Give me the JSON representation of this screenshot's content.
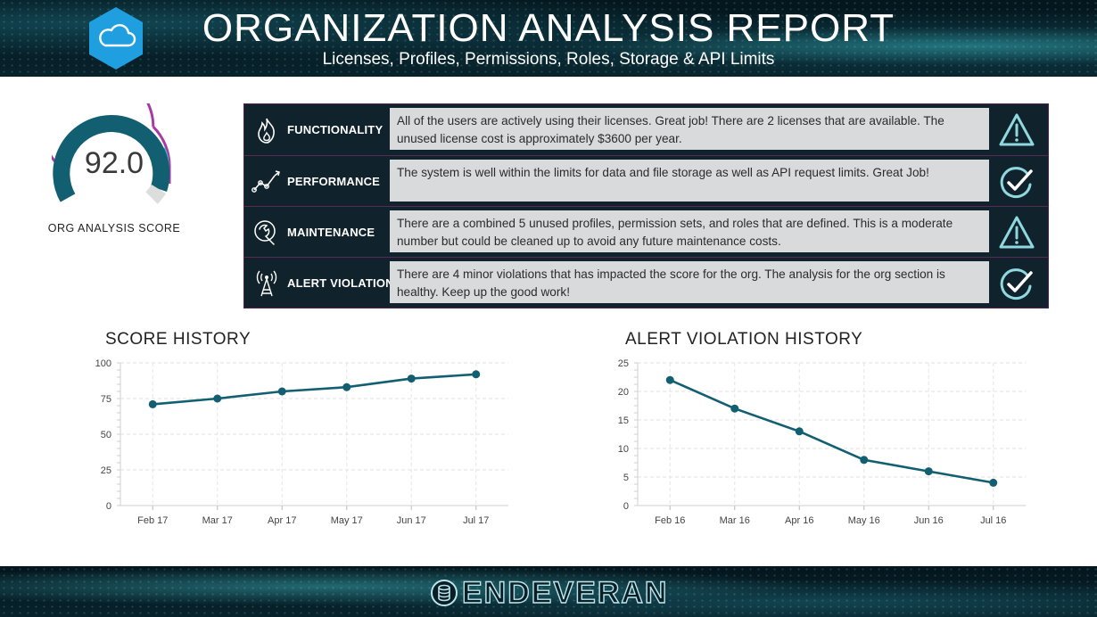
{
  "header": {
    "title": "ORGANIZATION ANALYSIS REPORT",
    "subtitle": "Licenses, Profiles, Permissions, Roles, Storage & API Limits",
    "logo_icon": "cloud-icon"
  },
  "score": {
    "value": "92.0",
    "label": "ORG ANALYSIS SCORE",
    "progress_fraction": 0.92,
    "colors": {
      "ring": "#135f72",
      "outer": "#a83aa6",
      "accent": "#41b6bf"
    }
  },
  "categories": [
    {
      "label": "FUNCTIONALITY",
      "icon": "flame-icon",
      "description": "All of the users are actively using their licenses. Great job! There are 2 licenses that are available. The unused license cost is approximately $3600 per year.",
      "status": "warning-icon"
    },
    {
      "label": "PERFORMANCE",
      "icon": "trend-graph-icon",
      "description": "The system is well within the limits for data and file storage as well as API request limits. Great Job!",
      "status": "check-icon"
    },
    {
      "label": "MAINTENANCE",
      "icon": "wrench-icon",
      "description": "There are a combined 5 unused profiles, permission sets, and roles that are defined. This is a moderate number but could be cleaned up to avoid any future maintenance costs.",
      "status": "warning-icon"
    },
    {
      "label": "ALERT VIOLATION",
      "icon": "antenna-tower-icon",
      "description": "There are 4 minor violations that has impacted the score for the org. The analysis for the org section is healthy. Keep up the good work!",
      "status": "check-icon"
    }
  ],
  "chart_data": [
    {
      "type": "line",
      "title": "SCORE HISTORY",
      "categories": [
        "Feb 17",
        "Mar 17",
        "Apr 17",
        "May 17",
        "Jun 17",
        "Jul 17"
      ],
      "values": [
        71,
        75,
        80,
        83,
        89,
        92
      ],
      "yticks": [
        "0",
        "25",
        "50",
        "75",
        "100"
      ],
      "ylim": [
        0,
        100
      ],
      "xlabel": "",
      "ylabel": "",
      "color": "#135f72"
    },
    {
      "type": "line",
      "title": "ALERT VIOLATION HISTORY",
      "categories": [
        "Feb 16",
        "Mar 16",
        "Apr 16",
        "May 16",
        "Jun 16",
        "Jul 16"
      ],
      "values": [
        22,
        17,
        13,
        8,
        6,
        4
      ],
      "yticks": [
        "0",
        "5",
        "10",
        "15",
        "20",
        "25"
      ],
      "ylim": [
        0,
        25
      ],
      "xlabel": "",
      "ylabel": "",
      "color": "#135f72"
    }
  ],
  "footer": {
    "brand": "ENDEVERAN",
    "logo_icon": "database-icon"
  }
}
